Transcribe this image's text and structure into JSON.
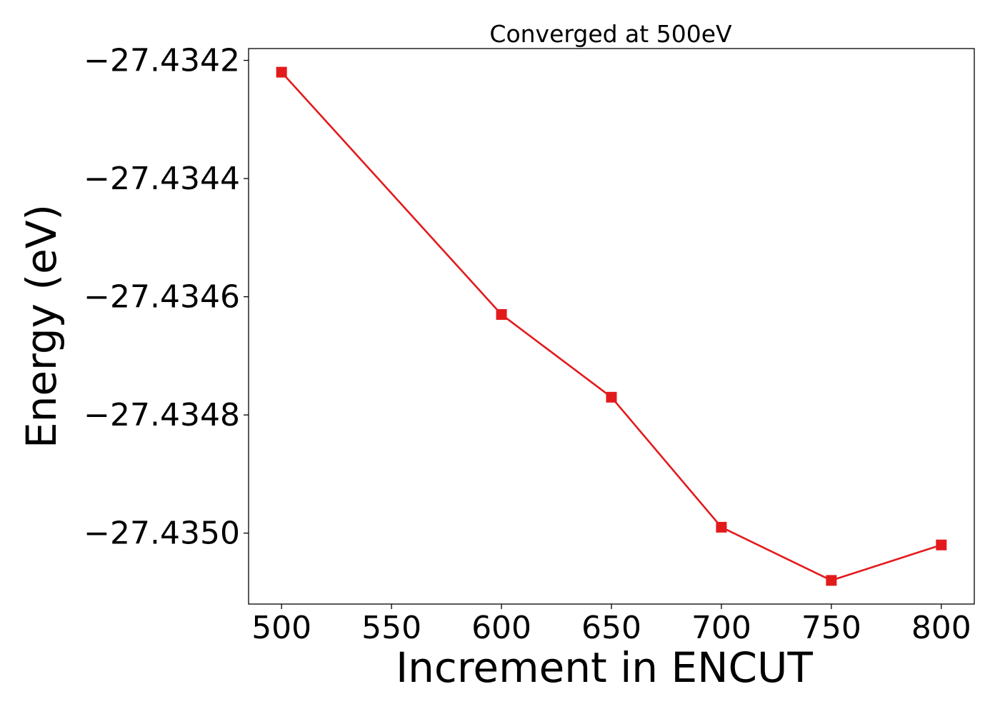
{
  "chart_data": {
    "type": "line",
    "title": "Converged at 500eV",
    "xlabel": "Increment in ENCUT",
    "ylabel": "Energy (eV)",
    "xlim": [
      485,
      815
    ],
    "ylim": [
      -27.43512,
      -27.43418
    ],
    "x_ticks": [
      500,
      550,
      600,
      650,
      700,
      750,
      800
    ],
    "x_tick_labels": [
      "500",
      "550",
      "600",
      "650",
      "700",
      "750",
      "800"
    ],
    "y_ticks": [
      -27.4342,
      -27.4344,
      -27.4346,
      -27.4348,
      -27.435
    ],
    "y_tick_labels": [
      "−27.4342",
      "−27.4344",
      "−27.4346",
      "−27.4348",
      "−27.4350"
    ],
    "grid": false,
    "marker": "square",
    "color": "#e31a1c",
    "series": [
      {
        "x": [
          500,
          600,
          650,
          700,
          750,
          800
        ],
        "values": [
          -27.43422,
          -27.43463,
          -27.43477,
          -27.43499,
          -27.43508,
          -27.43502
        ]
      }
    ]
  }
}
